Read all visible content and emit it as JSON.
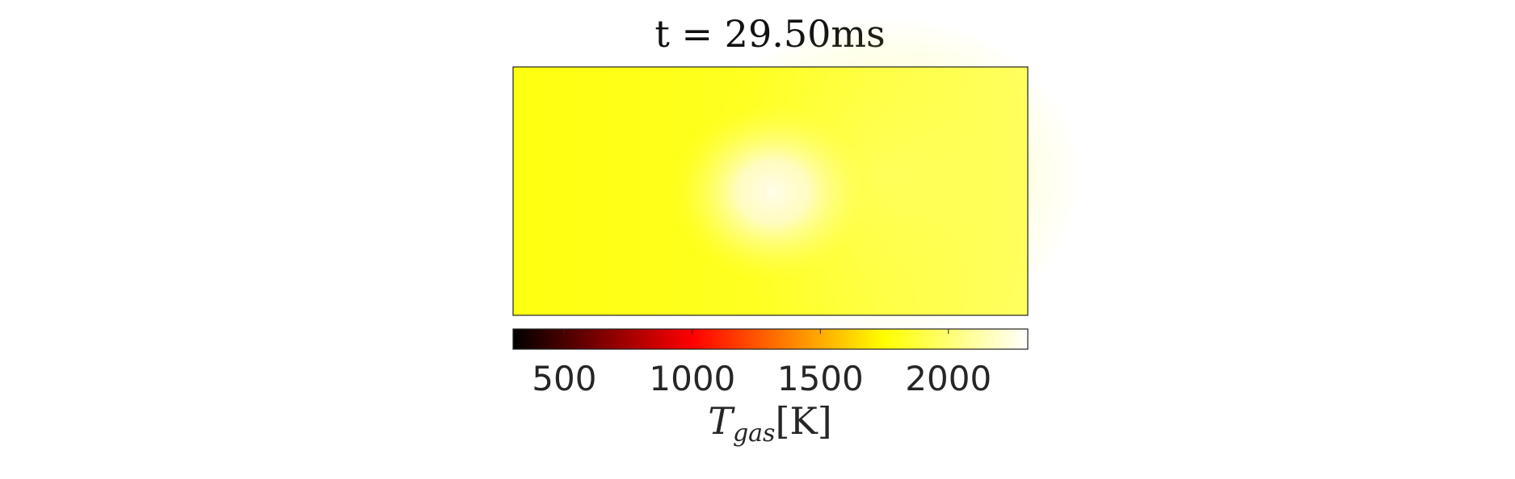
{
  "chart_data": {
    "type": "heatmap",
    "title": "t = 29.50ms",
    "colormap": "hot",
    "field_description_colors": {
      "base": "#ffff10",
      "hot_spot": "#fffde0"
    },
    "colorbar": {
      "label_main": "T",
      "label_sub": "gas",
      "label_unit": "[K]",
      "clim": [
        300,
        2310
      ],
      "ticks": [
        500,
        1000,
        1500,
        2000
      ],
      "tick_labels": [
        "500",
        "1000",
        "1500",
        "2000"
      ],
      "stops": [
        {
          "value": 300,
          "color": "#000000"
        },
        {
          "value": 1000,
          "color": "#ff0000"
        },
        {
          "value": 1750,
          "color": "#ffff00"
        },
        {
          "value": 2310,
          "color": "#ffffff"
        }
      ]
    }
  }
}
